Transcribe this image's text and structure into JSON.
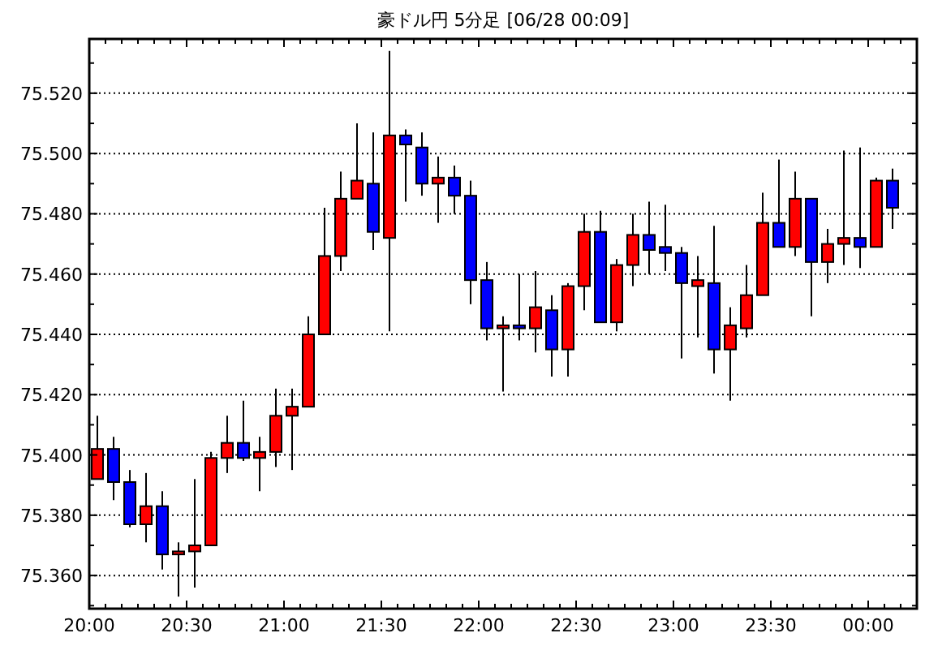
{
  "chart_data": {
    "type": "candlestick",
    "title": "豪ドル円 5分足 [06/28 00:09]",
    "x": [
      20.0417,
      20.125,
      20.2083,
      20.2917,
      20.375,
      20.4583,
      20.5417,
      20.625,
      20.7083,
      20.7917,
      20.875,
      20.9583,
      21.0417,
      21.125,
      21.2083,
      21.2917,
      21.375,
      21.4583,
      21.5417,
      21.625,
      21.7083,
      21.7917,
      21.875,
      21.9583,
      22.0417,
      22.125,
      22.2083,
      22.2917,
      22.375,
      22.4583,
      22.5417,
      22.625,
      22.7083,
      22.7917,
      22.875,
      22.9583,
      23.0417,
      23.125,
      23.2083,
      23.2917,
      23.375,
      23.4583,
      23.5417,
      23.625,
      23.7083,
      23.7917,
      23.875,
      23.9583,
      24.0417,
      24.125
    ],
    "ohlc": [
      [
        75.392,
        75.413,
        75.392,
        75.402
      ],
      [
        75.402,
        75.406,
        75.385,
        75.391
      ],
      [
        75.391,
        75.395,
        75.376,
        75.377
      ],
      [
        75.377,
        75.394,
        75.371,
        75.383
      ],
      [
        75.383,
        75.388,
        75.362,
        75.367
      ],
      [
        75.367,
        75.371,
        75.353,
        75.368
      ],
      [
        75.368,
        75.392,
        75.356,
        75.37
      ],
      [
        75.37,
        75.401,
        75.37,
        75.399
      ],
      [
        75.399,
        75.413,
        75.394,
        75.404
      ],
      [
        75.404,
        75.418,
        75.398,
        75.399
      ],
      [
        75.399,
        75.406,
        75.388,
        75.401
      ],
      [
        75.401,
        75.422,
        75.396,
        75.413
      ],
      [
        75.413,
        75.422,
        75.395,
        75.416
      ],
      [
        75.416,
        75.446,
        75.416,
        75.44
      ],
      [
        75.44,
        75.482,
        75.44,
        75.466
      ],
      [
        75.466,
        75.494,
        75.461,
        75.485
      ],
      [
        75.485,
        75.51,
        75.485,
        75.491
      ],
      [
        75.49,
        75.507,
        75.468,
        75.474
      ],
      [
        75.472,
        75.534,
        75.441,
        75.506
      ],
      [
        75.506,
        75.508,
        75.484,
        75.503
      ],
      [
        75.502,
        75.507,
        75.486,
        75.49
      ],
      [
        75.49,
        75.499,
        75.477,
        75.492
      ],
      [
        75.492,
        75.496,
        75.48,
        75.486
      ],
      [
        75.486,
        75.491,
        75.45,
        75.458
      ],
      [
        75.458,
        75.464,
        75.438,
        75.442
      ],
      [
        75.442,
        75.446,
        75.421,
        75.443
      ],
      [
        75.443,
        75.46,
        75.438,
        75.442
      ],
      [
        75.442,
        75.461,
        75.434,
        75.449
      ],
      [
        75.448,
        75.453,
        75.426,
        75.435
      ],
      [
        75.435,
        75.457,
        75.426,
        75.456
      ],
      [
        75.456,
        75.48,
        75.448,
        75.474
      ],
      [
        75.474,
        75.481,
        75.444,
        75.444
      ],
      [
        75.444,
        75.465,
        75.441,
        75.463
      ],
      [
        75.463,
        75.48,
        75.456,
        75.473
      ],
      [
        75.473,
        75.484,
        75.46,
        75.468
      ],
      [
        75.469,
        75.483,
        75.461,
        75.467
      ],
      [
        75.467,
        75.469,
        75.432,
        75.457
      ],
      [
        75.456,
        75.466,
        75.439,
        75.458
      ],
      [
        75.457,
        75.476,
        75.427,
        75.435
      ],
      [
        75.435,
        75.449,
        75.418,
        75.443
      ],
      [
        75.442,
        75.463,
        75.439,
        75.453
      ],
      [
        75.453,
        75.487,
        75.453,
        75.477
      ],
      [
        75.477,
        75.498,
        75.469,
        75.469
      ],
      [
        75.469,
        75.494,
        75.466,
        75.485
      ],
      [
        75.485,
        75.485,
        75.446,
        75.464
      ],
      [
        75.464,
        75.475,
        75.457,
        75.47
      ],
      [
        75.47,
        75.501,
        75.463,
        75.472
      ],
      [
        75.472,
        75.502,
        75.462,
        75.469
      ],
      [
        75.469,
        75.492,
        75.469,
        75.491
      ],
      [
        75.491,
        75.495,
        75.475,
        75.482
      ]
    ],
    "colors": [
      "#ff0000",
      "#0000ff",
      "#0000ff",
      "#ff0000",
      "#0000ff",
      "#ff0000",
      "#ff0000",
      "#ff0000",
      "#ff0000",
      "#0000ff",
      "#ff0000",
      "#ff0000",
      "#ff0000",
      "#ff0000",
      "#ff0000",
      "#ff0000",
      "#ff0000",
      "#0000ff",
      "#ff0000",
      "#0000ff",
      "#0000ff",
      "#ff0000",
      "#0000ff",
      "#0000ff",
      "#0000ff",
      "#ff0000",
      "#0000ff",
      "#ff0000",
      "#0000ff",
      "#ff0000",
      "#ff0000",
      "#0000ff",
      "#ff0000",
      "#ff0000",
      "#0000ff",
      "#0000ff",
      "#0000ff",
      "#ff0000",
      "#0000ff",
      "#ff0000",
      "#ff0000",
      "#ff0000",
      "#0000ff",
      "#ff0000",
      "#0000ff",
      "#ff0000",
      "#ff0000",
      "#0000ff",
      "#ff0000",
      "#0000ff"
    ],
    "xlim": [
      20,
      24.25
    ],
    "xticks": [
      {
        "value": 20,
        "label": "20:00"
      },
      {
        "value": 20.0833,
        "label": null
      },
      {
        "value": 20.1667,
        "label": null
      },
      {
        "value": 20.25,
        "label": null
      },
      {
        "value": 20.3333,
        "label": null
      },
      {
        "value": 20.4167,
        "label": null
      },
      {
        "value": 20.5,
        "label": "20:30"
      },
      {
        "value": 20.5833,
        "label": null
      },
      {
        "value": 20.6667,
        "label": null
      },
      {
        "value": 20.75,
        "label": null
      },
      {
        "value": 20.8333,
        "label": null
      },
      {
        "value": 20.9167,
        "label": null
      },
      {
        "value": 21,
        "label": "21:00"
      },
      {
        "value": 21.0833,
        "label": null
      },
      {
        "value": 21.1667,
        "label": null
      },
      {
        "value": 21.25,
        "label": null
      },
      {
        "value": 21.3333,
        "label": null
      },
      {
        "value": 21.4167,
        "label": null
      },
      {
        "value": 21.5,
        "label": "21:30"
      },
      {
        "value": 21.5833,
        "label": null
      },
      {
        "value": 21.6667,
        "label": null
      },
      {
        "value": 21.75,
        "label": null
      },
      {
        "value": 21.8333,
        "label": null
      },
      {
        "value": 21.9167,
        "label": null
      },
      {
        "value": 22,
        "label": "22:00"
      },
      {
        "value": 22.0833,
        "label": null
      },
      {
        "value": 22.1667,
        "label": null
      },
      {
        "value": 22.25,
        "label": null
      },
      {
        "value": 22.3333,
        "label": null
      },
      {
        "value": 22.4167,
        "label": null
      },
      {
        "value": 22.5,
        "label": "22:30"
      },
      {
        "value": 22.5833,
        "label": null
      },
      {
        "value": 22.6667,
        "label": null
      },
      {
        "value": 22.75,
        "label": null
      },
      {
        "value": 22.8333,
        "label": null
      },
      {
        "value": 22.9167,
        "label": null
      },
      {
        "value": 23,
        "label": "23:00"
      },
      {
        "value": 23.0833,
        "label": null
      },
      {
        "value": 23.1667,
        "label": null
      },
      {
        "value": 23.25,
        "label": null
      },
      {
        "value": 23.3333,
        "label": null
      },
      {
        "value": 23.4167,
        "label": null
      },
      {
        "value": 23.5,
        "label": "23:30"
      },
      {
        "value": 23.5833,
        "label": null
      },
      {
        "value": 23.6667,
        "label": null
      },
      {
        "value": 23.75,
        "label": null
      },
      {
        "value": 23.8333,
        "label": null
      },
      {
        "value": 23.9167,
        "label": null
      },
      {
        "value": 24,
        "label": "00:00"
      },
      {
        "value": 24.0833,
        "label": null
      },
      {
        "value": 24.1667,
        "label": null
      }
    ],
    "ylim": [
      75.349,
      75.538
    ],
    "yticks": [
      {
        "value": 75.35,
        "label": null
      },
      {
        "value": 75.36,
        "label": "75.360"
      },
      {
        "value": 75.37,
        "label": null
      },
      {
        "value": 75.38,
        "label": "75.380"
      },
      {
        "value": 75.39,
        "label": null
      },
      {
        "value": 75.4,
        "label": "75.400"
      },
      {
        "value": 75.41,
        "label": null
      },
      {
        "value": 75.42,
        "label": "75.420"
      },
      {
        "value": 75.43,
        "label": null
      },
      {
        "value": 75.44,
        "label": "75.440"
      },
      {
        "value": 75.45,
        "label": null
      },
      {
        "value": 75.46,
        "label": "75.460"
      },
      {
        "value": 75.47,
        "label": null
      },
      {
        "value": 75.48,
        "label": "75.480"
      },
      {
        "value": 75.49,
        "label": null
      },
      {
        "value": 75.5,
        "label": "75.500"
      },
      {
        "value": 75.51,
        "label": null
      },
      {
        "value": 75.52,
        "label": "75.520"
      },
      {
        "value": 75.53,
        "label": null
      }
    ],
    "grid": "y"
  }
}
